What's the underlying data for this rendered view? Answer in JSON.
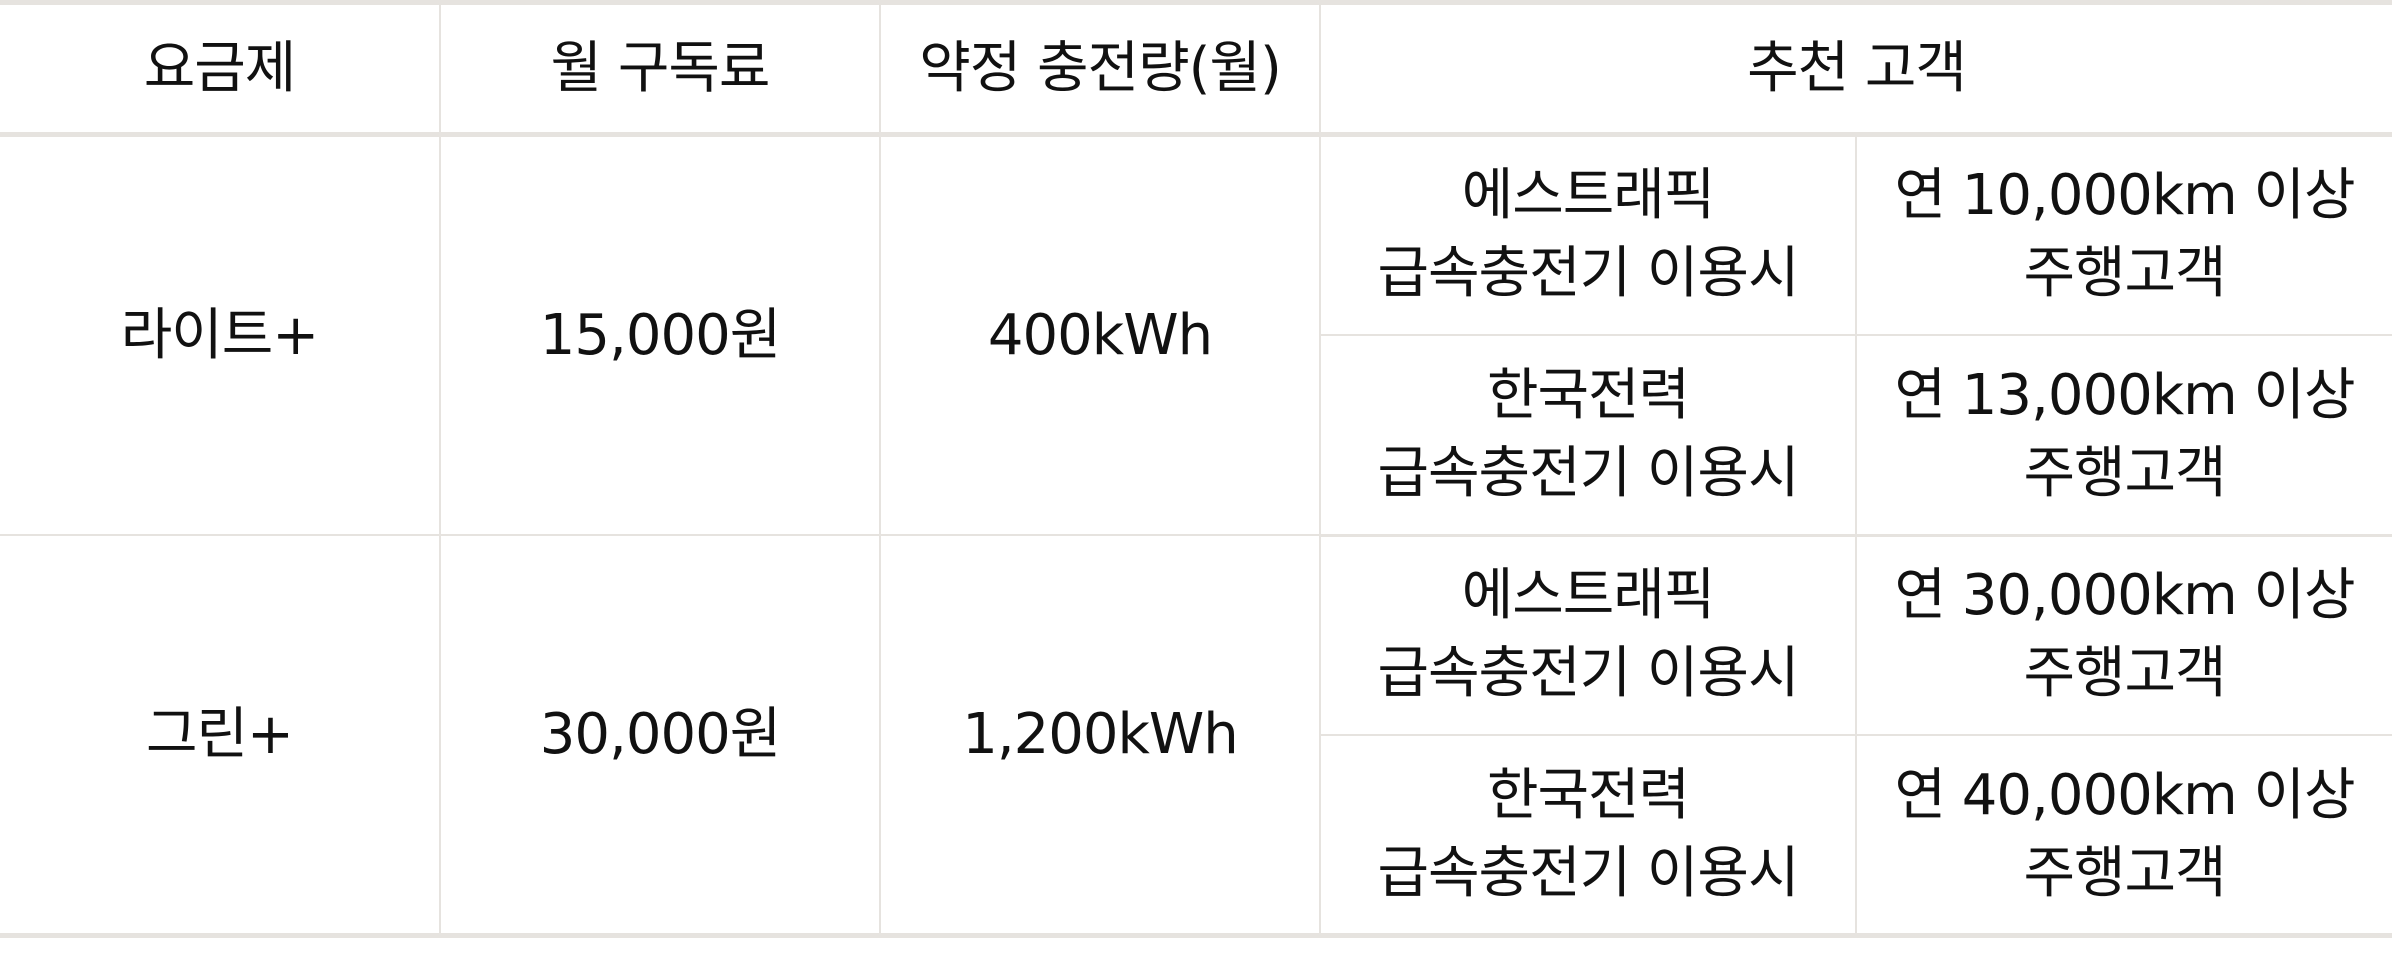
{
  "table": {
    "headers": {
      "plan": "요금제",
      "monthly_fee": "월 구독료",
      "committed_charge": "약정 충전량(월)",
      "recommended_customer": "추천 고객"
    },
    "plans": [
      {
        "name": "라이트+",
        "fee": "15,000원",
        "charge": "400kWh",
        "recommendations": [
          {
            "usage_line1": "에스트래픽",
            "usage_line2": "급속충전기 이용시",
            "distance_line1": "연 10,000km 이상",
            "distance_line2": "주행고객"
          },
          {
            "usage_line1": "한국전력",
            "usage_line2": "급속충전기 이용시",
            "distance_line1": "연 13,000km 이상",
            "distance_line2": "주행고객"
          }
        ]
      },
      {
        "name": "그린+",
        "fee": "30,000원",
        "charge": "1,200kWh",
        "recommendations": [
          {
            "usage_line1": "에스트래픽",
            "usage_line2": "급속충전기 이용시",
            "distance_line1": "연 30,000km 이상",
            "distance_line2": "주행고객"
          },
          {
            "usage_line1": "한국전력",
            "usage_line2": "급속충전기 이용시",
            "distance_line1": "연 40,000km 이상",
            "distance_line2": "주행고객"
          }
        ]
      }
    ]
  }
}
